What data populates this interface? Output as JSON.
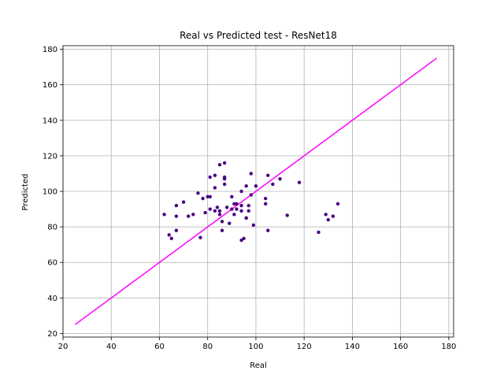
{
  "chart_data": {
    "type": "scatter",
    "title": "Real vs Predicted test - ResNet18",
    "xlabel": "Real",
    "ylabel": "Predicted",
    "xlim": [
      20,
      182
    ],
    "ylim": [
      18,
      182
    ],
    "xticks": [
      20,
      40,
      60,
      80,
      100,
      120,
      140,
      160,
      180
    ],
    "yticks": [
      20,
      40,
      60,
      80,
      100,
      120,
      140,
      160,
      180
    ],
    "grid": true,
    "colors": {
      "points": "#4b0082",
      "line": "#ff00ff",
      "grid": "#b0b0b0"
    },
    "series": [
      {
        "type": "scatter",
        "points": [
          [
            62,
            87
          ],
          [
            64,
            75.5
          ],
          [
            65,
            73.5
          ],
          [
            67,
            86
          ],
          [
            67,
            92
          ],
          [
            67,
            78
          ],
          [
            70,
            94
          ],
          [
            72,
            86
          ],
          [
            74,
            87
          ],
          [
            76,
            99
          ],
          [
            77,
            74
          ],
          [
            78,
            96
          ],
          [
            79,
            88
          ],
          [
            80,
            97
          ],
          [
            81,
            108
          ],
          [
            81,
            90
          ],
          [
            81,
            97
          ],
          [
            83,
            109
          ],
          [
            83,
            102
          ],
          [
            83,
            89
          ],
          [
            84,
            91
          ],
          [
            85,
            87
          ],
          [
            85,
            115
          ],
          [
            85,
            89
          ],
          [
            86,
            78
          ],
          [
            86,
            83
          ],
          [
            87,
            108
          ],
          [
            87,
            104
          ],
          [
            87,
            116
          ],
          [
            87,
            107
          ],
          [
            88,
            91
          ],
          [
            89,
            82
          ],
          [
            90,
            97
          ],
          [
            90,
            90
          ],
          [
            91,
            87
          ],
          [
            91,
            93
          ],
          [
            92,
            93
          ],
          [
            92,
            90
          ],
          [
            94,
            100
          ],
          [
            94,
            89
          ],
          [
            94,
            92
          ],
          [
            94,
            72.5
          ],
          [
            95,
            73.5
          ],
          [
            96,
            85
          ],
          [
            96,
            103
          ],
          [
            96,
            85
          ],
          [
            97,
            89
          ],
          [
            97,
            92
          ],
          [
            98,
            110
          ],
          [
            98,
            98
          ],
          [
            99,
            81
          ],
          [
            100,
            103
          ],
          [
            104,
            96
          ],
          [
            104,
            93
          ],
          [
            105,
            109
          ],
          [
            105,
            78
          ],
          [
            107,
            104
          ],
          [
            110,
            107
          ],
          [
            113,
            86.5
          ],
          [
            118,
            105
          ],
          [
            126,
            77
          ],
          [
            129,
            87
          ],
          [
            130,
            84
          ],
          [
            132,
            86
          ],
          [
            134,
            93
          ]
        ]
      },
      {
        "type": "line",
        "x": [
          25,
          175
        ],
        "y": [
          25,
          175
        ]
      }
    ]
  }
}
